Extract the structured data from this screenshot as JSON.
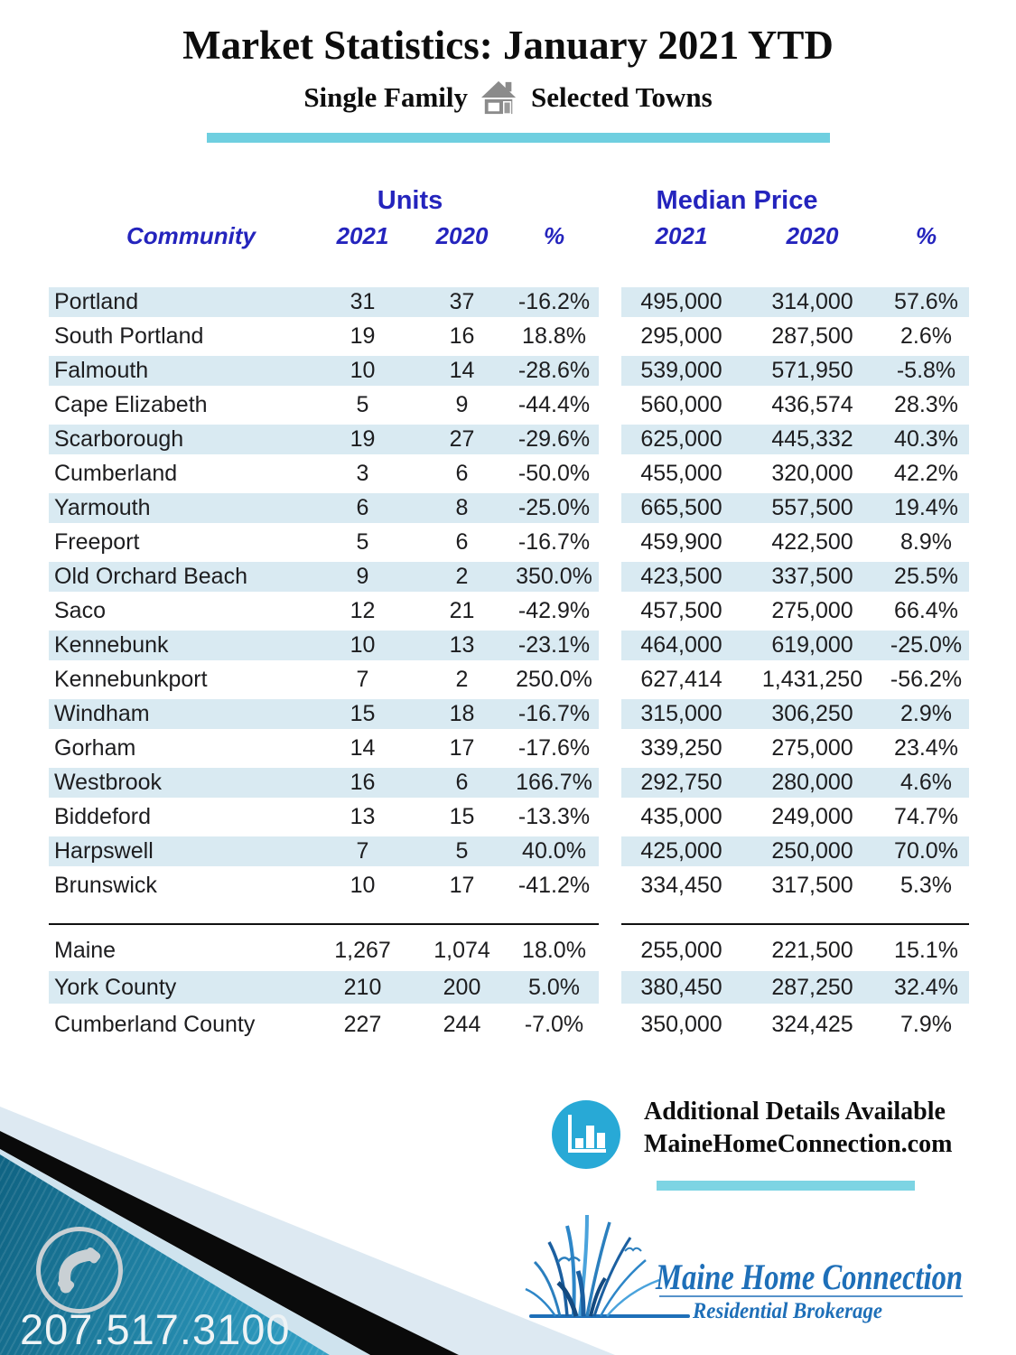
{
  "title": "Market Statistics: January 2021 YTD",
  "subtitle": {
    "left": "Single Family",
    "right": "Selected Towns"
  },
  "icons": {
    "house": "house-icon",
    "bar_chart": "bar-chart-icon",
    "phone": "phone-icon",
    "grass_birds": "grass-and-birds-logo-icon"
  },
  "colors": {
    "accent_teal": "#6fcfe0",
    "row_shade": "#d9eaf2",
    "header_blue": "#2424bd",
    "icon_blue": "#28a9d6",
    "logo_blue": "#1e6fb8"
  },
  "table": {
    "group_headers": {
      "units": "Units",
      "median_price": "Median Price"
    },
    "columns": {
      "community": "Community",
      "units_2021": "2021",
      "units_2020": "2020",
      "units_pct": "%",
      "price_2021": "2021",
      "price_2020": "2020",
      "price_pct": "%"
    },
    "rows": [
      {
        "community": "Portland",
        "u21": "31",
        "u20": "37",
        "upct": "-16.2%",
        "p21": "495,000",
        "p20": "314,000",
        "ppct": "57.6%"
      },
      {
        "community": "South Portland",
        "u21": "19",
        "u20": "16",
        "upct": "18.8%",
        "p21": "295,000",
        "p20": "287,500",
        "ppct": "2.6%"
      },
      {
        "community": "Falmouth",
        "u21": "10",
        "u20": "14",
        "upct": "-28.6%",
        "p21": "539,000",
        "p20": "571,950",
        "ppct": "-5.8%"
      },
      {
        "community": "Cape Elizabeth",
        "u21": "5",
        "u20": "9",
        "upct": "-44.4%",
        "p21": "560,000",
        "p20": "436,574",
        "ppct": "28.3%"
      },
      {
        "community": "Scarborough",
        "u21": "19",
        "u20": "27",
        "upct": "-29.6%",
        "p21": "625,000",
        "p20": "445,332",
        "ppct": "40.3%"
      },
      {
        "community": "Cumberland",
        "u21": "3",
        "u20": "6",
        "upct": "-50.0%",
        "p21": "455,000",
        "p20": "320,000",
        "ppct": "42.2%"
      },
      {
        "community": "Yarmouth",
        "u21": "6",
        "u20": "8",
        "upct": "-25.0%",
        "p21": "665,500",
        "p20": "557,500",
        "ppct": "19.4%"
      },
      {
        "community": "Freeport",
        "u21": "5",
        "u20": "6",
        "upct": "-16.7%",
        "p21": "459,900",
        "p20": "422,500",
        "ppct": "8.9%"
      },
      {
        "community": "Old Orchard Beach",
        "u21": "9",
        "u20": "2",
        "upct": "350.0%",
        "p21": "423,500",
        "p20": "337,500",
        "ppct": "25.5%"
      },
      {
        "community": "Saco",
        "u21": "12",
        "u20": "21",
        "upct": "-42.9%",
        "p21": "457,500",
        "p20": "275,000",
        "ppct": "66.4%"
      },
      {
        "community": "Kennebunk",
        "u21": "10",
        "u20": "13",
        "upct": "-23.1%",
        "p21": "464,000",
        "p20": "619,000",
        "ppct": "-25.0%"
      },
      {
        "community": "Kennebunkport",
        "u21": "7",
        "u20": "2",
        "upct": "250.0%",
        "p21": "627,414",
        "p20": "1,431,250",
        "ppct": "-56.2%"
      },
      {
        "community": "Windham",
        "u21": "15",
        "u20": "18",
        "upct": "-16.7%",
        "p21": "315,000",
        "p20": "306,250",
        "ppct": "2.9%"
      },
      {
        "community": "Gorham",
        "u21": "14",
        "u20": "17",
        "upct": "-17.6%",
        "p21": "339,250",
        "p20": "275,000",
        "ppct": "23.4%"
      },
      {
        "community": "Westbrook",
        "u21": "16",
        "u20": "6",
        "upct": "166.7%",
        "p21": "292,750",
        "p20": "280,000",
        "ppct": "4.6%"
      },
      {
        "community": "Biddeford",
        "u21": "13",
        "u20": "15",
        "upct": "-13.3%",
        "p21": "435,000",
        "p20": "249,000",
        "ppct": "74.7%"
      },
      {
        "community": "Harpswell",
        "u21": "7",
        "u20": "5",
        "upct": "40.0%",
        "p21": "425,000",
        "p20": "250,000",
        "ppct": "70.0%"
      },
      {
        "community": "Brunswick",
        "u21": "10",
        "u20": "17",
        "upct": "-41.2%",
        "p21": "334,450",
        "p20": "317,500",
        "ppct": "5.3%"
      }
    ],
    "summary_rows": [
      {
        "community": "Maine",
        "u21": "1,267",
        "u20": "1,074",
        "upct": "18.0%",
        "p21": "255,000",
        "p20": "221,500",
        "ppct": "15.1%"
      },
      {
        "community": "York County",
        "u21": "210",
        "u20": "200",
        "upct": "5.0%",
        "p21": "380,450",
        "p20": "287,250",
        "ppct": "32.4%"
      },
      {
        "community": "Cumberland County",
        "u21": "227",
        "u20": "244",
        "upct": "-7.0%",
        "p21": "350,000",
        "p20": "324,425",
        "ppct": "7.9%"
      }
    ]
  },
  "details": {
    "line1": "Additional Details Available",
    "line2": "MaineHomeConnection.com"
  },
  "footer": {
    "phone": "207.517.3100",
    "logo_name": "Maine Home Connection",
    "logo_tagline": "Residential Brokerage"
  }
}
